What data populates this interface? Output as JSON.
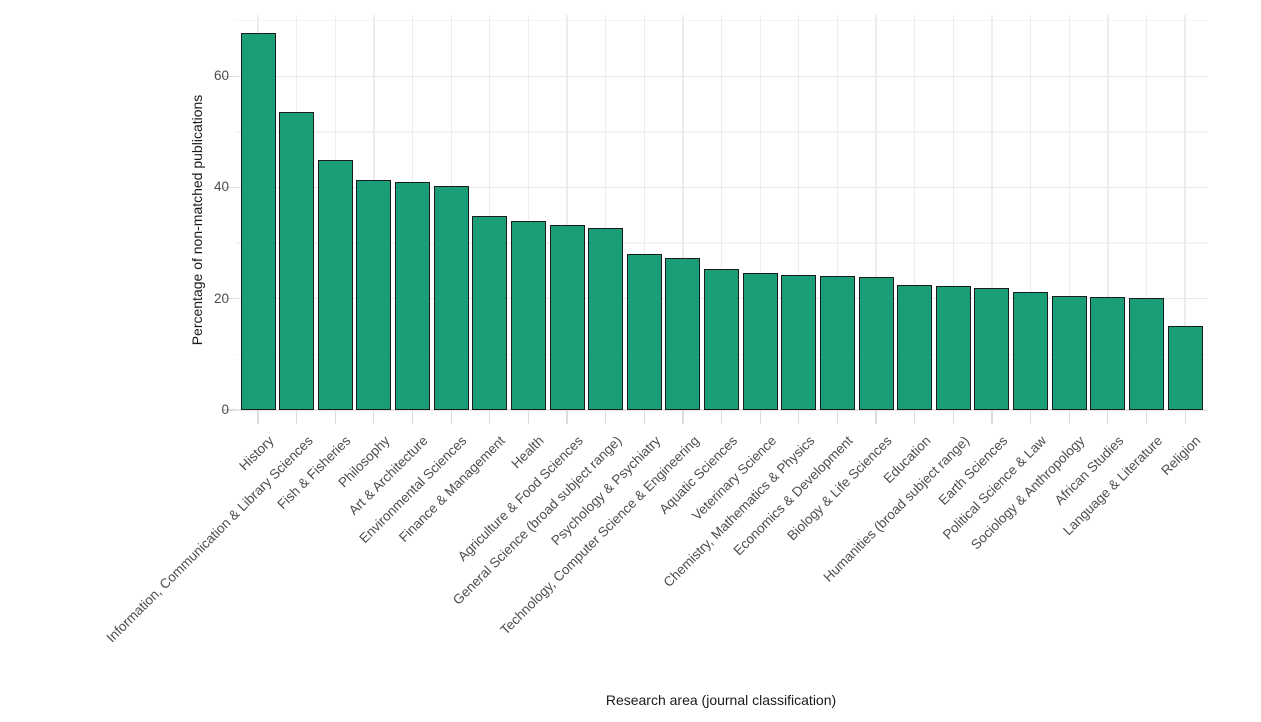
{
  "chart_data": {
    "type": "bar",
    "title": "",
    "xlabel": "Research area (journal classification)",
    "ylabel": "Percentage of non-matched publications",
    "categories": [
      "History",
      "Information, Communication & Library Sciences",
      "Fish & Fisheries",
      "Philosophy",
      "Art & Architecture",
      "Environmental Sciences",
      "Finance & Management",
      "Health",
      "Agriculture & Food Sciences",
      "General Science (broad subject range)",
      "Psychology & Psychiatry",
      "Technology, Computer Science & Engineering",
      "Aquatic Sciences",
      "Veterinary Science",
      "Chemistry, Mathematics & Physics",
      "Economics & Development",
      "Biology & Life Sciences",
      "Education",
      "Humanities (broad subject range)",
      "Earth Sciences",
      "Political Science & Law",
      "Sociology & Anthropology",
      "African Studies",
      "Language & Literature",
      "Religion"
    ],
    "values": [
      67.8,
      53.6,
      44.9,
      41.3,
      40.9,
      40.3,
      34.9,
      34.0,
      33.2,
      32.8,
      28.0,
      27.4,
      25.3,
      24.7,
      24.2,
      24.0,
      23.9,
      22.5,
      22.3,
      21.9,
      21.2,
      20.5,
      20.3,
      20.1,
      15.1
    ],
    "y_ticks": [
      0,
      20,
      40,
      60
    ],
    "y_minor": [
      10,
      30,
      50,
      70
    ],
    "ylim": [
      0,
      71
    ],
    "grid": true,
    "legend": false,
    "colors": {
      "bar_fill": "#1b9e77",
      "bar_border": "#1c1c1c",
      "grid_major": "#e7e7e7",
      "grid_minor": "#f4f4f4",
      "grid_vertical": "#ececec",
      "axis_text": "#4d4d4d",
      "axis_title": "#1a1a1a",
      "tick_mark": "#dcdcdc",
      "background": "#ffffff"
    }
  }
}
